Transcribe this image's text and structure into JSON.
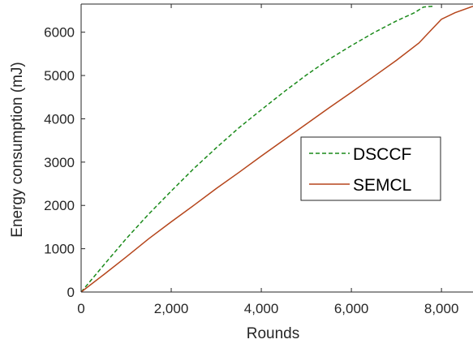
{
  "chart_data": {
    "type": "line",
    "title": "",
    "xlabel": "Rounds",
    "ylabel": "Energy consumption (mJ)",
    "xlim": [
      0,
      8700
    ],
    "ylim": [
      0,
      6650
    ],
    "x_ticks": [
      0,
      2000,
      4000,
      6000,
      8000
    ],
    "x_tick_labels": [
      "0",
      "2,000",
      "4,000",
      "6,000",
      "8,000"
    ],
    "y_ticks": [
      0,
      1000,
      2000,
      3000,
      4000,
      5000,
      6000
    ],
    "y_tick_labels": [
      "0",
      "1000",
      "2000",
      "3000",
      "4000",
      "5000",
      "6000"
    ],
    "grid": false,
    "legend_position": "center-right",
    "series": [
      {
        "name": "DSCCF",
        "color": "#1a8a1a",
        "style": "dashed",
        "x": [
          0,
          500,
          1000,
          1500,
          2000,
          2500,
          3000,
          3500,
          4000,
          4500,
          5000,
          5500,
          6000,
          6500,
          7000,
          7400,
          7600,
          7800
        ],
        "y": [
          0,
          620,
          1230,
          1800,
          2330,
          2850,
          3330,
          3790,
          4210,
          4620,
          5010,
          5370,
          5690,
          5990,
          6260,
          6450,
          6580,
          6600
        ]
      },
      {
        "name": "SEMCL",
        "color": "#b5451b",
        "style": "solid",
        "x": [
          0,
          500,
          1000,
          1500,
          2000,
          2500,
          3000,
          3500,
          4000,
          4500,
          5000,
          5500,
          6000,
          6500,
          7000,
          7500,
          7800,
          8000,
          8300,
          8700
        ],
        "y": [
          0,
          400,
          810,
          1230,
          1620,
          2000,
          2390,
          2760,
          3140,
          3510,
          3880,
          4250,
          4610,
          4980,
          5350,
          5750,
          6080,
          6300,
          6450,
          6600
        ]
      }
    ]
  }
}
